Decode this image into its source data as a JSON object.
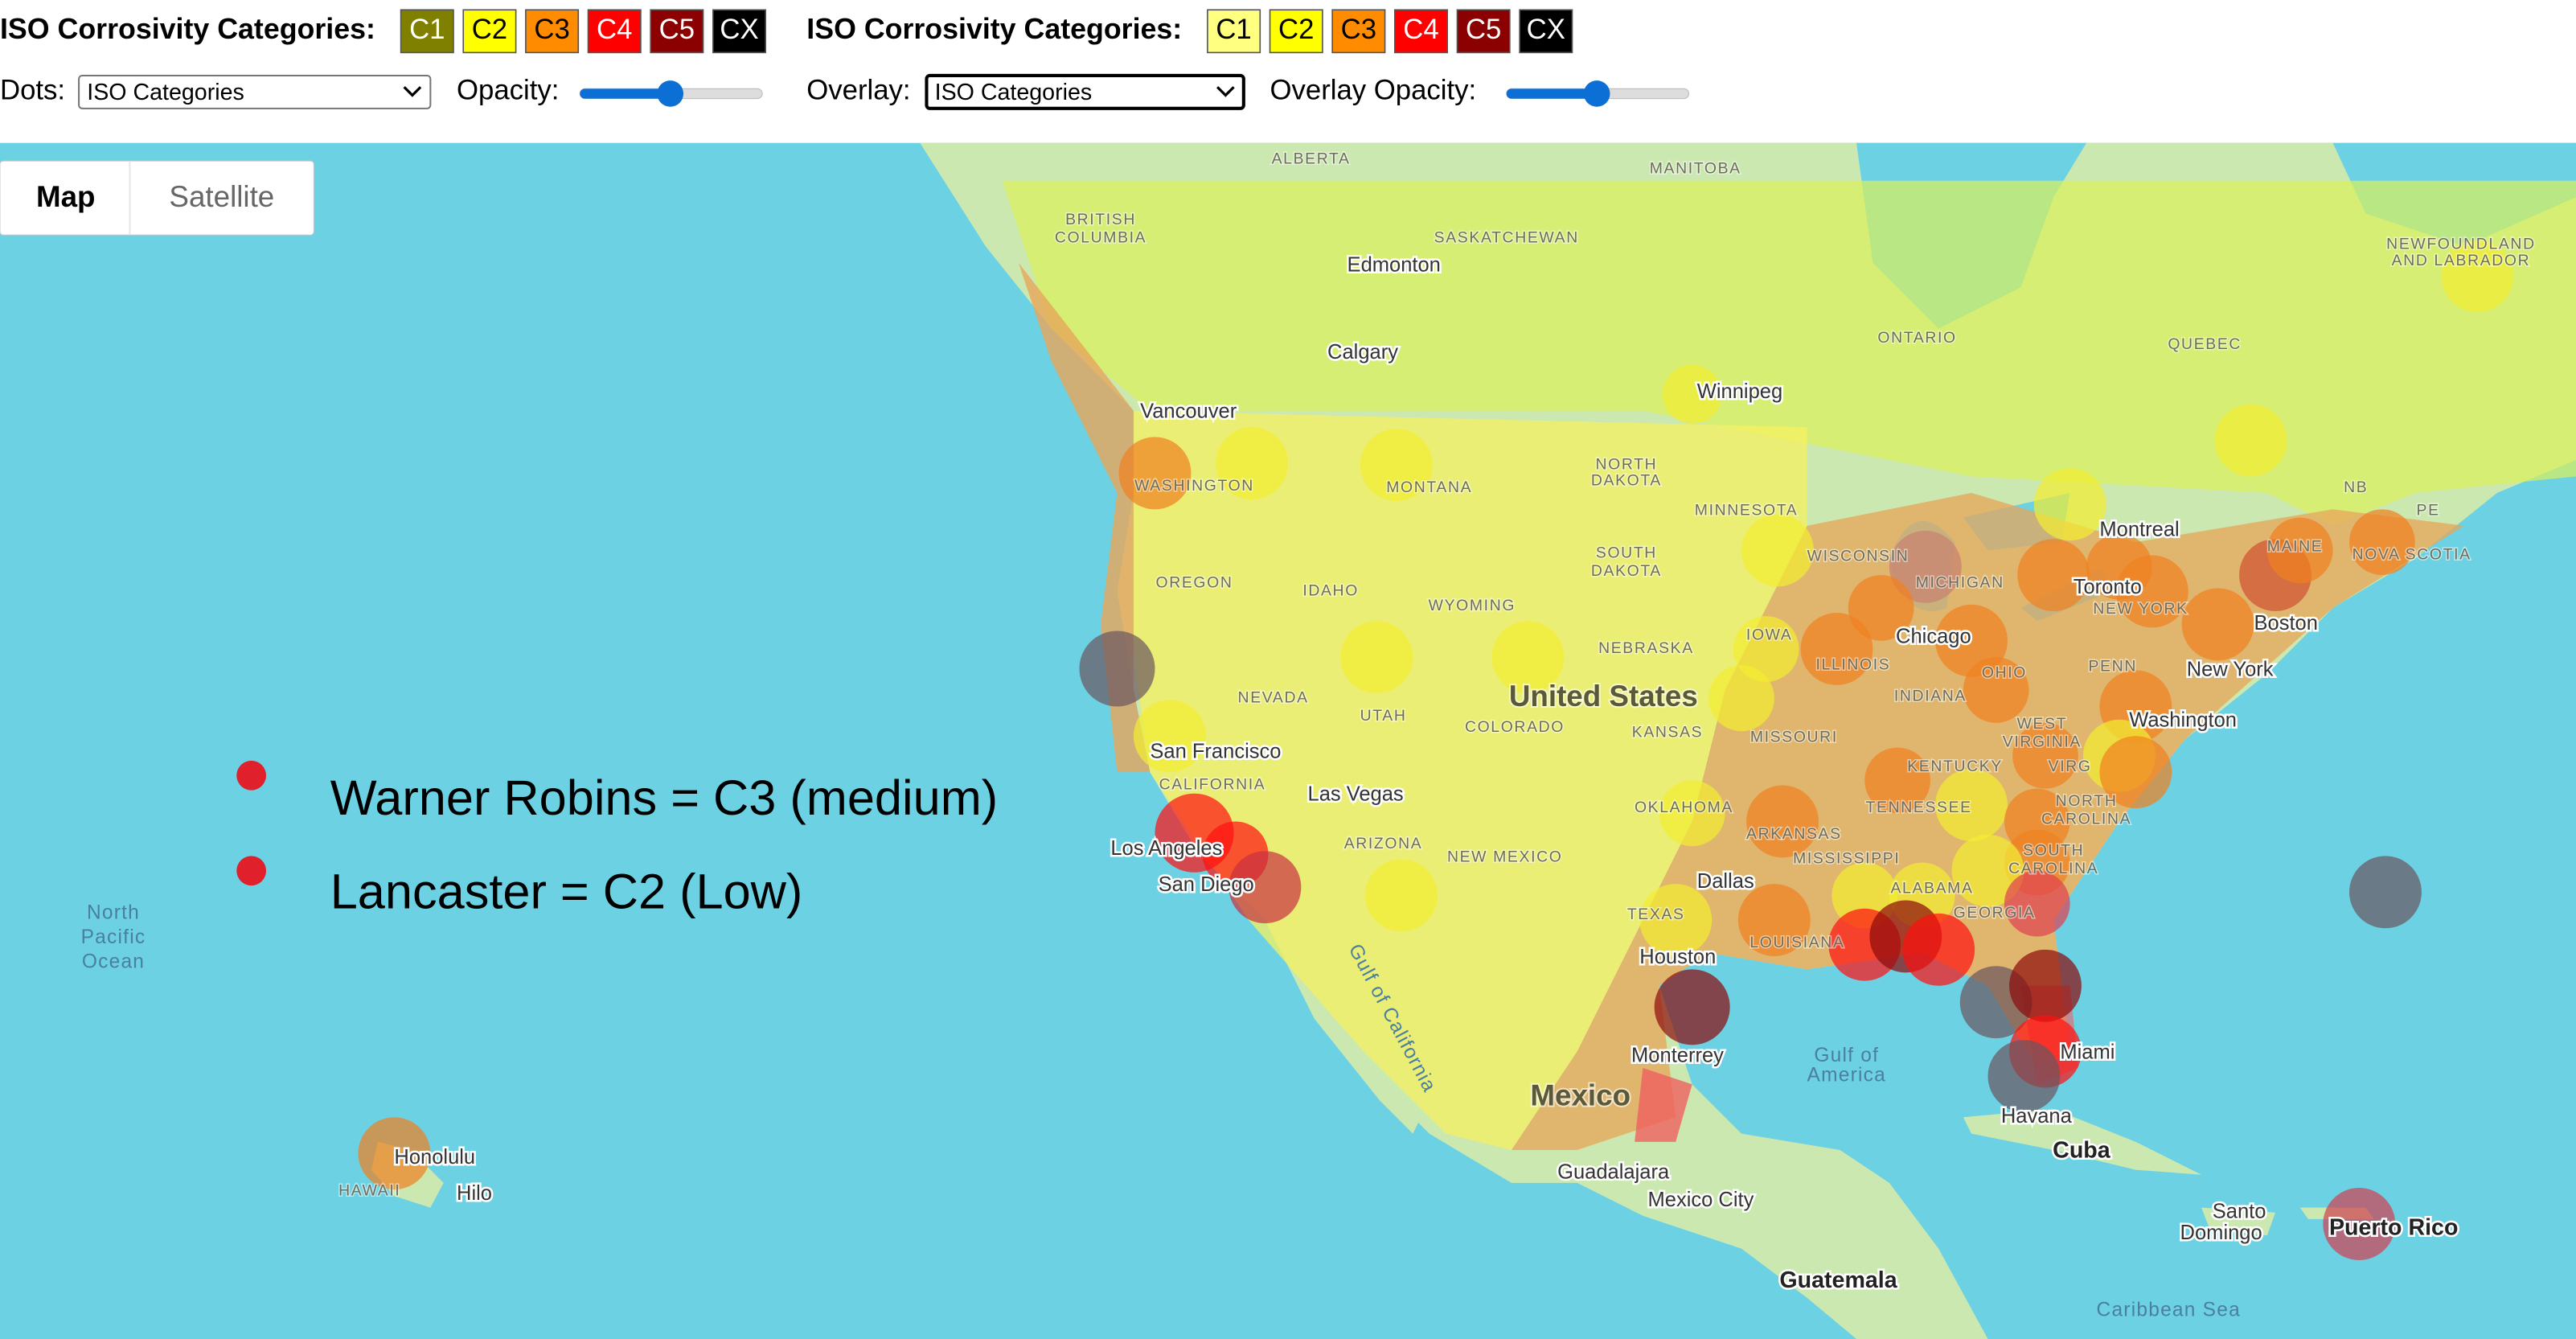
{
  "toolbar": {
    "dots_legend": {
      "title": "ISO Corrosivity Categories:",
      "categories": [
        {
          "label": "C1",
          "color": "#808000"
        },
        {
          "label": "C2",
          "color": "#ffff00"
        },
        {
          "label": "C3",
          "color": "#ff8c00"
        },
        {
          "label": "C4",
          "color": "#ff0000"
        },
        {
          "label": "C5",
          "color": "#8b0000"
        },
        {
          "label": "CX",
          "color": "#000000"
        }
      ]
    },
    "overlay_legend": {
      "title": "ISO Corrosivity Categories:",
      "categories": [
        {
          "label": "C1",
          "color": "#ffff80"
        },
        {
          "label": "C2",
          "color": "#ffff00"
        },
        {
          "label": "C3",
          "color": "#ff8c00"
        },
        {
          "label": "C4",
          "color": "#ff0000"
        },
        {
          "label": "C5",
          "color": "#8b0000"
        },
        {
          "label": "CX",
          "color": "#000000"
        }
      ]
    },
    "dots": {
      "label": "Dots:",
      "value": "ISO Categories"
    },
    "opacity": {
      "label": "Opacity:"
    },
    "overlay": {
      "label": "Overlay:",
      "value": "ISO Categories"
    },
    "overlay_opacity": {
      "label": "Overlay Opacity:"
    }
  },
  "map_type": [
    "Map",
    "Satellite"
  ],
  "places": [
    "ALBERTA",
    "MANITOBA",
    "BRITISH",
    "COLUMBIA",
    "SASKATCHEWAN",
    "Edmonton",
    "Calgary",
    "ONTARIO",
    "QUEBEC",
    "NEWFOUNDLAND",
    "AND LABRADOR",
    "Winnipeg",
    "Vancouver",
    "WASHINGTON",
    "MONTANA",
    "NORTH",
    "DAKOTA",
    "MINNESOTA",
    "Montreal",
    "NB",
    "PE",
    "MAINE",
    "NOVA SCOTIA",
    "WISCONSIN",
    "MICHIGAN",
    "SOUTH",
    "DAKOTA",
    "Toronto",
    "OREGON",
    "IDAHO",
    "WYOMING",
    "NEW YORK",
    "Boston",
    "Chicago",
    "NEBRASKA",
    "IOWA",
    "ILLINOIS",
    "OHIO",
    "PENN",
    "New York",
    "NEVADA",
    "UTAH",
    "United States",
    "COLORADO",
    "INDIANA",
    "KANSAS",
    "Washington",
    "WEST",
    "VIRGINIA",
    "MISSOURI",
    "San Francisco",
    "KENTUCKY",
    "VIRG",
    "CALIFORNIA",
    "Las Vegas",
    "NORTH",
    "CAROLINA",
    "TENNESSEE",
    "OKLAHOMA",
    "ARKANSAS",
    "ARIZONA",
    "NEW MEXICO",
    "Los Angeles",
    "SOUTH",
    "CAROLINA",
    "MISSISSIPPI",
    "ALABAMA",
    "GEORGIA",
    "Dallas",
    "San Diego",
    "TEXAS",
    "LOUISIANA",
    "Houston",
    "Monterrey",
    "Gulf of",
    "America",
    "Miami",
    "Mexico",
    "Havana",
    "Cuba",
    "Guadalajara",
    "Mexico City",
    "Guatemala",
    "Santo",
    "Domingo",
    "Puerto Rico",
    "Caribbean Sea",
    "North",
    "Pacific",
    "Ocean",
    "Honolulu",
    "HAWAII",
    "Hilo",
    "Gulf of California"
  ],
  "annotations": [
    "Warner Robins = C3 (medium)",
    "Lancaster = C2 (Low)"
  ]
}
